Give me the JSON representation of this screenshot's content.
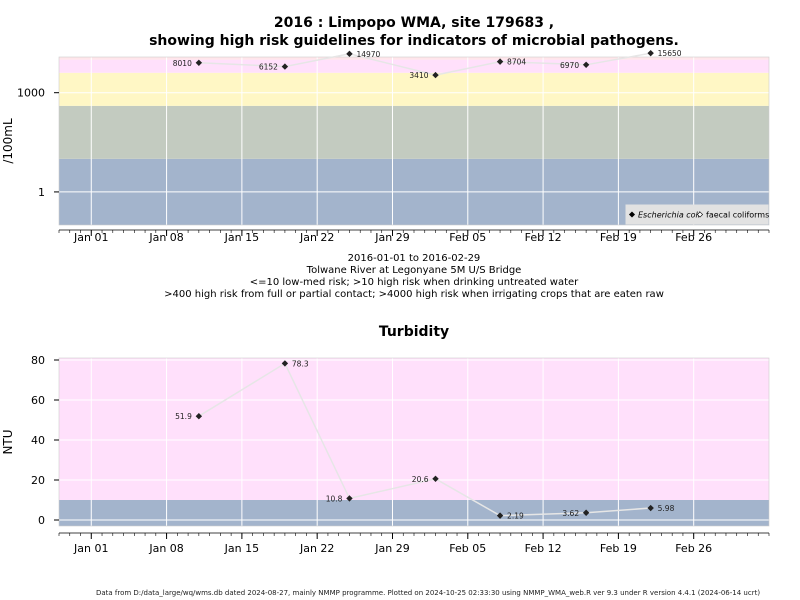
{
  "title_line1": "2016 : Limpopo WMA, site 179683 ,",
  "title_line2": "showing high risk guidelines for indicators of microbial pathogens.",
  "caption": [
    "2016-01-01 to 2016-02-29",
    "Tolwane River at Legonyane 5M U/S Bridge",
    "<=10 low-med risk; >10 high risk when drinking untreated water",
    ">400 high risk from full or partial contact; >4000 high risk when irrigating crops that are eaten raw"
  ],
  "footer": "Data from D:/data_large/wq/wms.db dated 2024-08-27, mainly NMMP programme. Plotted on 2024-10-25 02:33:30 using NMMP_WMA_web.R ver 9.3 under R version 4.4.1 (2024-06-14 ucrt)",
  "colors": {
    "band_low": "#a3b4cc",
    "band_mid": "#c3cbc0",
    "band_yellow": "#fff7c5",
    "band_pink": "#ffe0fb",
    "band_top": "#ffe6ea",
    "line": "#e6e6e6",
    "grid": "#ffffff",
    "marker": "#222222"
  },
  "chart_data": [
    {
      "type": "line",
      "title": "2016 : Limpopo WMA, site 179683 , showing high risk guidelines for indicators of microbial pathogens.",
      "ylabel": "/100mL",
      "yscale": "log",
      "yticks": [
        1,
        1000
      ],
      "ytick_labels": [
        "1",
        "1000"
      ],
      "ylim": [
        0.1,
        12000
      ],
      "xlim": [
        "2015-12-29",
        "2016-03-04"
      ],
      "xticks": [
        "2016-01-01",
        "2016-01-08",
        "2016-01-15",
        "2016-01-22",
        "2016-01-29",
        "2016-02-05",
        "2016-02-12",
        "2016-02-19",
        "2016-02-26"
      ],
      "xtick_labels": [
        "Jan 01",
        "Jan 08",
        "Jan 15",
        "Jan 22",
        "Jan 29",
        "Feb 05",
        "Feb 12",
        "Feb 19",
        "Feb 26"
      ],
      "bands": [
        {
          "from": 0.1,
          "to": 10,
          "color": "band_low"
        },
        {
          "from": 10,
          "to": 400,
          "color": "band_mid"
        },
        {
          "from": 400,
          "to": 4000,
          "color": "band_yellow"
        },
        {
          "from": 4000,
          "to": 10000,
          "color": "band_pink"
        },
        {
          "from": 10000,
          "to": 12000,
          "color": "band_top"
        }
      ],
      "series": [
        {
          "name": "Escherichia coli",
          "marker": "filled-diamond",
          "points": [
            {
              "x": "2016-01-11",
              "y": 8010,
              "label": "8010",
              "label_side": "left"
            },
            {
              "x": "2016-01-19",
              "y": 6152,
              "label": "6152",
              "label_side": "left"
            },
            {
              "x": "2016-01-25",
              "y": 14970,
              "label": "14970",
              "label_side": "right"
            },
            {
              "x": "2016-02-02",
              "y": 3410,
              "label": "3410",
              "label_side": "left"
            },
            {
              "x": "2016-02-08",
              "y": 8704,
              "label": "8704",
              "label_side": "right"
            },
            {
              "x": "2016-02-16",
              "y": 6970,
              "label": "6970",
              "label_side": "left"
            },
            {
              "x": "2016-02-22",
              "y": 15650,
              "label": "15650",
              "label_side": "right"
            }
          ]
        }
      ],
      "legend": {
        "position": "bottom-right",
        "entries": [
          {
            "label": "Escherichia coli",
            "marker": "filled-diamond",
            "italic": true
          },
          {
            "label": "faecal coliforms",
            "marker": "open-diamond",
            "italic": false
          }
        ]
      }
    },
    {
      "type": "line",
      "title": "Turbidity",
      "ylabel": "NTU",
      "yscale": "linear",
      "yticks": [
        0,
        20,
        40,
        60,
        80
      ],
      "ytick_labels": [
        "0",
        "20",
        "40",
        "60",
        "80"
      ],
      "ylim": [
        -3,
        81
      ],
      "xlim": [
        "2015-12-29",
        "2016-03-04"
      ],
      "xticks": [
        "2016-01-01",
        "2016-01-08",
        "2016-01-15",
        "2016-01-22",
        "2016-01-29",
        "2016-02-05",
        "2016-02-12",
        "2016-02-19",
        "2016-02-26"
      ],
      "xtick_labels": [
        "Jan 01",
        "Jan 08",
        "Jan 15",
        "Jan 22",
        "Jan 29",
        "Feb 05",
        "Feb 12",
        "Feb 19",
        "Feb 26"
      ],
      "bands": [
        {
          "from": -3,
          "to": 10,
          "color": "band_low"
        },
        {
          "from": 10,
          "to": 81,
          "color": "band_pink"
        }
      ],
      "series": [
        {
          "marker": "filled-diamond",
          "points": [
            {
              "x": "2016-01-11",
              "y": 51.9,
              "label": "51.9",
              "label_side": "left"
            },
            {
              "x": "2016-01-19",
              "y": 78.3,
              "label": "78.3",
              "label_side": "right"
            },
            {
              "x": "2016-01-25",
              "y": 10.8,
              "label": "10.8",
              "label_side": "left"
            },
            {
              "x": "2016-02-02",
              "y": 20.6,
              "label": "20.6",
              "label_side": "left"
            },
            {
              "x": "2016-02-08",
              "y": 2.19,
              "label": "2.19",
              "label_side": "right"
            },
            {
              "x": "2016-02-16",
              "y": 3.62,
              "label": "3.62",
              "label_side": "left"
            },
            {
              "x": "2016-02-22",
              "y": 5.98,
              "label": "5.98",
              "label_side": "right"
            }
          ]
        }
      ]
    }
  ]
}
